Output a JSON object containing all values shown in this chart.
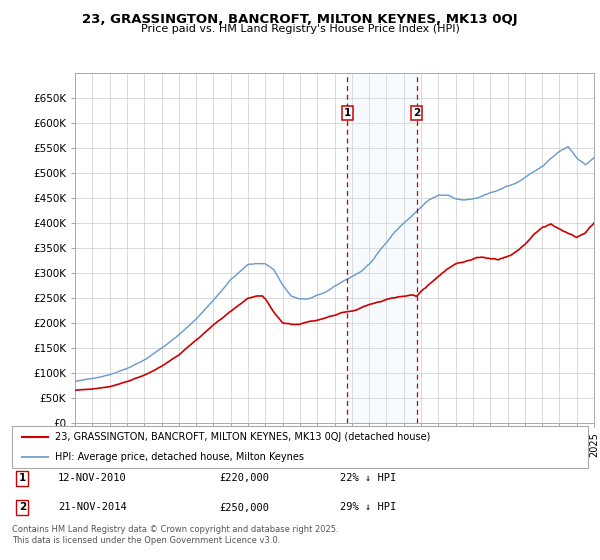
{
  "title": "23, GRASSINGTON, BANCROFT, MILTON KEYNES, MK13 0QJ",
  "subtitle": "Price paid vs. HM Land Registry's House Price Index (HPI)",
  "background_color": "#ffffff",
  "grid_color": "#cccccc",
  "ylim": [
    0,
    700000
  ],
  "yticks": [
    0,
    50000,
    100000,
    150000,
    200000,
    250000,
    300000,
    350000,
    400000,
    450000,
    500000,
    550000,
    600000,
    650000
  ],
  "ytick_labels": [
    "£0",
    "£50K",
    "£100K",
    "£150K",
    "£200K",
    "£250K",
    "£300K",
    "£350K",
    "£400K",
    "£450K",
    "£500K",
    "£550K",
    "£600K",
    "£650K"
  ],
  "hpi_color": "#6699cc",
  "price_color": "#cc0000",
  "vline_color": "#cc0000",
  "shade_color": "#d0e8f8",
  "legend_line1": "23, GRASSINGTON, BANCROFT, MILTON KEYNES, MK13 0QJ (detached house)",
  "legend_line2": "HPI: Average price, detached house, Milton Keynes",
  "annotation1": [
    "1",
    "12-NOV-2010",
    "£220,000",
    "22% ↓ HPI"
  ],
  "annotation2": [
    "2",
    "21-NOV-2014",
    "£250,000",
    "29% ↓ HPI"
  ],
  "footer": "Contains HM Land Registry data © Crown copyright and database right 2025.\nThis data is licensed under the Open Government Licence v3.0.",
  "x_start_year": 1995,
  "x_end_year": 2025,
  "n_months": 361,
  "marker1_month": 189,
  "marker2_month": 237,
  "hpi_keypoints": [
    [
      0,
      83000
    ],
    [
      12,
      88000
    ],
    [
      24,
      97000
    ],
    [
      36,
      110000
    ],
    [
      48,
      128000
    ],
    [
      60,
      152000
    ],
    [
      72,
      178000
    ],
    [
      84,
      210000
    ],
    [
      96,
      248000
    ],
    [
      108,
      290000
    ],
    [
      120,
      320000
    ],
    [
      132,
      322000
    ],
    [
      138,
      310000
    ],
    [
      144,
      280000
    ],
    [
      150,
      258000
    ],
    [
      156,
      252000
    ],
    [
      162,
      252000
    ],
    [
      168,
      258000
    ],
    [
      174,
      265000
    ],
    [
      180,
      275000
    ],
    [
      186,
      285000
    ],
    [
      192,
      295000
    ],
    [
      198,
      305000
    ],
    [
      204,
      320000
    ],
    [
      210,
      340000
    ],
    [
      216,
      360000
    ],
    [
      222,
      382000
    ],
    [
      228,
      400000
    ],
    [
      234,
      415000
    ],
    [
      240,
      432000
    ],
    [
      246,
      448000
    ],
    [
      252,
      455000
    ],
    [
      258,
      455000
    ],
    [
      264,
      450000
    ],
    [
      270,
      448000
    ],
    [
      276,
      450000
    ],
    [
      282,
      455000
    ],
    [
      288,
      462000
    ],
    [
      294,
      468000
    ],
    [
      300,
      475000
    ],
    [
      306,
      480000
    ],
    [
      312,
      490000
    ],
    [
      318,
      500000
    ],
    [
      324,
      510000
    ],
    [
      330,
      525000
    ],
    [
      336,
      540000
    ],
    [
      342,
      550000
    ],
    [
      348,
      530000
    ],
    [
      354,
      515000
    ],
    [
      360,
      530000
    ]
  ],
  "price_keypoints": [
    [
      0,
      65000
    ],
    [
      12,
      67000
    ],
    [
      24,
      72000
    ],
    [
      36,
      82000
    ],
    [
      48,
      95000
    ],
    [
      60,
      112000
    ],
    [
      72,
      135000
    ],
    [
      84,
      165000
    ],
    [
      96,
      195000
    ],
    [
      108,
      220000
    ],
    [
      120,
      245000
    ],
    [
      126,
      248000
    ],
    [
      130,
      248000
    ],
    [
      132,
      242000
    ],
    [
      138,
      215000
    ],
    [
      144,
      195000
    ],
    [
      150,
      192000
    ],
    [
      156,
      193000
    ],
    [
      162,
      198000
    ],
    [
      168,
      200000
    ],
    [
      174,
      205000
    ],
    [
      180,
      212000
    ],
    [
      186,
      218000
    ],
    [
      189,
      220000
    ],
    [
      192,
      222000
    ],
    [
      198,
      228000
    ],
    [
      204,
      235000
    ],
    [
      210,
      240000
    ],
    [
      216,
      245000
    ],
    [
      222,
      248000
    ],
    [
      228,
      250000
    ],
    [
      234,
      252000
    ],
    [
      237,
      250000
    ],
    [
      240,
      260000
    ],
    [
      246,
      275000
    ],
    [
      252,
      290000
    ],
    [
      258,
      305000
    ],
    [
      264,
      315000
    ],
    [
      270,
      318000
    ],
    [
      276,
      320000
    ],
    [
      282,
      322000
    ],
    [
      288,
      320000
    ],
    [
      294,
      318000
    ],
    [
      300,
      325000
    ],
    [
      306,
      335000
    ],
    [
      312,
      350000
    ],
    [
      318,
      370000
    ],
    [
      324,
      385000
    ],
    [
      330,
      390000
    ],
    [
      336,
      380000
    ],
    [
      342,
      370000
    ],
    [
      348,
      360000
    ],
    [
      354,
      370000
    ],
    [
      360,
      390000
    ]
  ]
}
